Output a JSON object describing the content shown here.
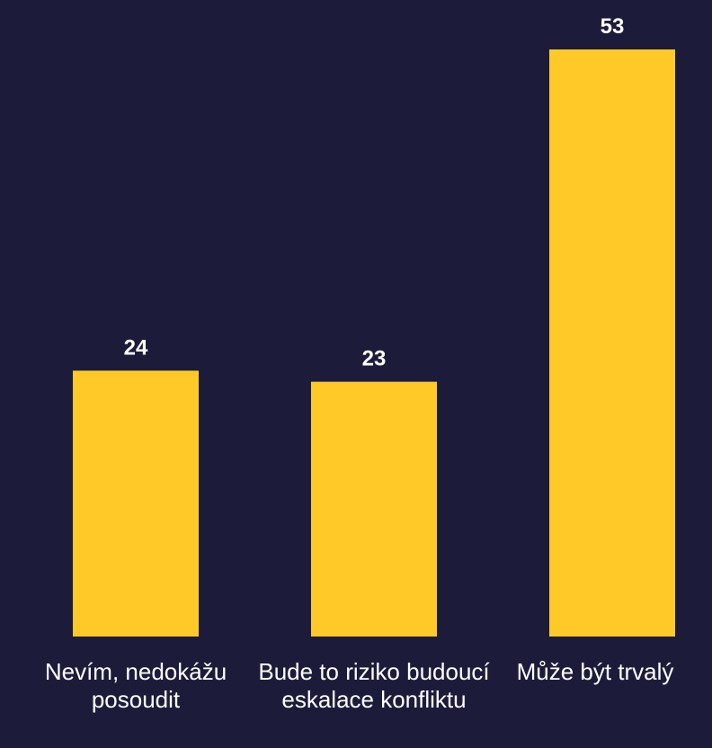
{
  "chart_data": {
    "type": "bar",
    "categories": [
      "Nevím, nedokážu posoudit",
      "Bude to riziko budoucí eskalace konfliktu",
      "Může být trvalý"
    ],
    "values": [
      24,
      23,
      53
    ],
    "color": "#ffca28"
  }
}
